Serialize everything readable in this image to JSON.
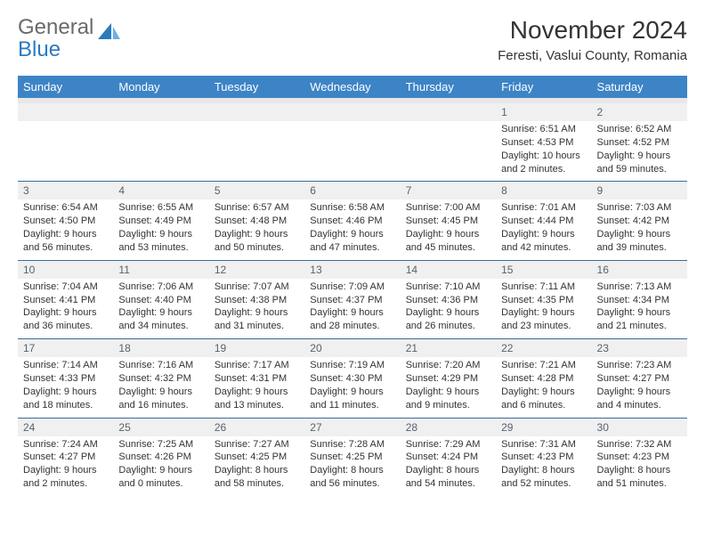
{
  "brand": {
    "text_gray": "General",
    "text_blue": "Blue",
    "icon_color": "#2b7bbf"
  },
  "header": {
    "month_year": "November 2024",
    "location": "Feresti, Vaslui County, Romania"
  },
  "colors": {
    "header_bg": "#3d84c6",
    "header_fg": "#ffffff",
    "daynum_bg": "#f0f0f0",
    "daynum_fg": "#56636f",
    "row_border": "#3d6a96",
    "brand_gray": "#6a6a6a",
    "brand_blue": "#2b7bbf"
  },
  "weekdays": [
    "Sunday",
    "Monday",
    "Tuesday",
    "Wednesday",
    "Thursday",
    "Friday",
    "Saturday"
  ],
  "weeks": [
    {
      "nums": [
        "",
        "",
        "",
        "",
        "",
        "1",
        "2"
      ],
      "details": [
        [],
        [],
        [],
        [],
        [],
        [
          "Sunrise: 6:51 AM",
          "Sunset: 4:53 PM",
          "Daylight: 10 hours",
          "and 2 minutes."
        ],
        [
          "Sunrise: 6:52 AM",
          "Sunset: 4:52 PM",
          "Daylight: 9 hours",
          "and 59 minutes."
        ]
      ]
    },
    {
      "nums": [
        "3",
        "4",
        "5",
        "6",
        "7",
        "8",
        "9"
      ],
      "details": [
        [
          "Sunrise: 6:54 AM",
          "Sunset: 4:50 PM",
          "Daylight: 9 hours",
          "and 56 minutes."
        ],
        [
          "Sunrise: 6:55 AM",
          "Sunset: 4:49 PM",
          "Daylight: 9 hours",
          "and 53 minutes."
        ],
        [
          "Sunrise: 6:57 AM",
          "Sunset: 4:48 PM",
          "Daylight: 9 hours",
          "and 50 minutes."
        ],
        [
          "Sunrise: 6:58 AM",
          "Sunset: 4:46 PM",
          "Daylight: 9 hours",
          "and 47 minutes."
        ],
        [
          "Sunrise: 7:00 AM",
          "Sunset: 4:45 PM",
          "Daylight: 9 hours",
          "and 45 minutes."
        ],
        [
          "Sunrise: 7:01 AM",
          "Sunset: 4:44 PM",
          "Daylight: 9 hours",
          "and 42 minutes."
        ],
        [
          "Sunrise: 7:03 AM",
          "Sunset: 4:42 PM",
          "Daylight: 9 hours",
          "and 39 minutes."
        ]
      ]
    },
    {
      "nums": [
        "10",
        "11",
        "12",
        "13",
        "14",
        "15",
        "16"
      ],
      "details": [
        [
          "Sunrise: 7:04 AM",
          "Sunset: 4:41 PM",
          "Daylight: 9 hours",
          "and 36 minutes."
        ],
        [
          "Sunrise: 7:06 AM",
          "Sunset: 4:40 PM",
          "Daylight: 9 hours",
          "and 34 minutes."
        ],
        [
          "Sunrise: 7:07 AM",
          "Sunset: 4:38 PM",
          "Daylight: 9 hours",
          "and 31 minutes."
        ],
        [
          "Sunrise: 7:09 AM",
          "Sunset: 4:37 PM",
          "Daylight: 9 hours",
          "and 28 minutes."
        ],
        [
          "Sunrise: 7:10 AM",
          "Sunset: 4:36 PM",
          "Daylight: 9 hours",
          "and 26 minutes."
        ],
        [
          "Sunrise: 7:11 AM",
          "Sunset: 4:35 PM",
          "Daylight: 9 hours",
          "and 23 minutes."
        ],
        [
          "Sunrise: 7:13 AM",
          "Sunset: 4:34 PM",
          "Daylight: 9 hours",
          "and 21 minutes."
        ]
      ]
    },
    {
      "nums": [
        "17",
        "18",
        "19",
        "20",
        "21",
        "22",
        "23"
      ],
      "details": [
        [
          "Sunrise: 7:14 AM",
          "Sunset: 4:33 PM",
          "Daylight: 9 hours",
          "and 18 minutes."
        ],
        [
          "Sunrise: 7:16 AM",
          "Sunset: 4:32 PM",
          "Daylight: 9 hours",
          "and 16 minutes."
        ],
        [
          "Sunrise: 7:17 AM",
          "Sunset: 4:31 PM",
          "Daylight: 9 hours",
          "and 13 minutes."
        ],
        [
          "Sunrise: 7:19 AM",
          "Sunset: 4:30 PM",
          "Daylight: 9 hours",
          "and 11 minutes."
        ],
        [
          "Sunrise: 7:20 AM",
          "Sunset: 4:29 PM",
          "Daylight: 9 hours",
          "and 9 minutes."
        ],
        [
          "Sunrise: 7:21 AM",
          "Sunset: 4:28 PM",
          "Daylight: 9 hours",
          "and 6 minutes."
        ],
        [
          "Sunrise: 7:23 AM",
          "Sunset: 4:27 PM",
          "Daylight: 9 hours",
          "and 4 minutes."
        ]
      ]
    },
    {
      "nums": [
        "24",
        "25",
        "26",
        "27",
        "28",
        "29",
        "30"
      ],
      "details": [
        [
          "Sunrise: 7:24 AM",
          "Sunset: 4:27 PM",
          "Daylight: 9 hours",
          "and 2 minutes."
        ],
        [
          "Sunrise: 7:25 AM",
          "Sunset: 4:26 PM",
          "Daylight: 9 hours",
          "and 0 minutes."
        ],
        [
          "Sunrise: 7:27 AM",
          "Sunset: 4:25 PM",
          "Daylight: 8 hours",
          "and 58 minutes."
        ],
        [
          "Sunrise: 7:28 AM",
          "Sunset: 4:25 PM",
          "Daylight: 8 hours",
          "and 56 minutes."
        ],
        [
          "Sunrise: 7:29 AM",
          "Sunset: 4:24 PM",
          "Daylight: 8 hours",
          "and 54 minutes."
        ],
        [
          "Sunrise: 7:31 AM",
          "Sunset: 4:23 PM",
          "Daylight: 8 hours",
          "and 52 minutes."
        ],
        [
          "Sunrise: 7:32 AM",
          "Sunset: 4:23 PM",
          "Daylight: 8 hours",
          "and 51 minutes."
        ]
      ]
    }
  ]
}
